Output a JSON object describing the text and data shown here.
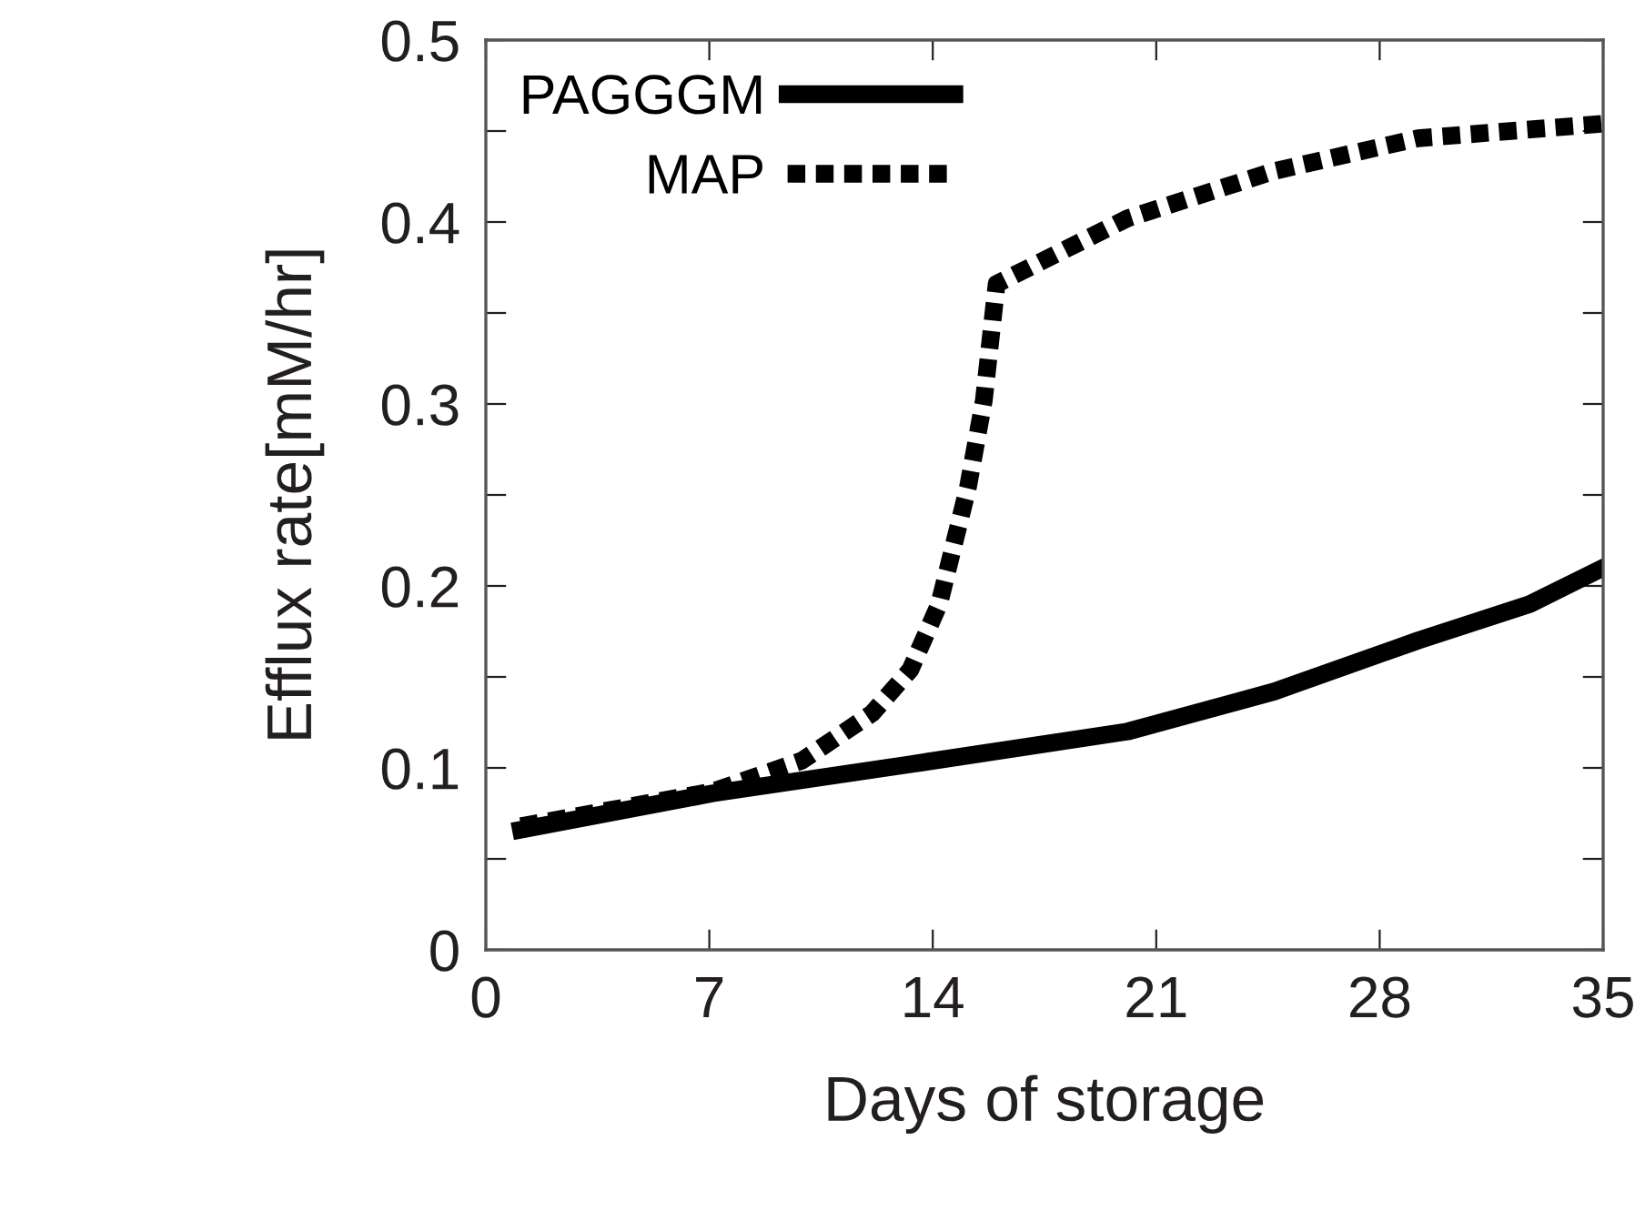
{
  "chart_data": {
    "type": "line",
    "xlabel": "Days of storage",
    "ylabel": "Efflux rate[mM/hr]",
    "xlim": [
      0,
      35
    ],
    "xticks": [
      0,
      7,
      14,
      21,
      28,
      35
    ],
    "ylim": [
      0,
      0.5
    ],
    "yticks": [
      0,
      {
        "value": 0.05,
        "label": null
      },
      0.1,
      {
        "value": 0.15,
        "label": null
      },
      0.2,
      {
        "value": 0.25,
        "label": null
      },
      0.3,
      {
        "value": 0.35,
        "label": null
      },
      0.4,
      {
        "value": 0.45,
        "label": null
      },
      0.5
    ],
    "grid": false,
    "legend": "top left",
    "marker": "none",
    "series": [
      {
        "name": "PAGGGM",
        "color": "#000000",
        "line_style": "solid",
        "x": [
          1.1,
          7.1,
          13.3,
          20.1,
          24.7,
          29.2,
          32.7,
          35
        ],
        "values": [
          0.066,
          0.086,
          0.102,
          0.12,
          0.142,
          0.17,
          0.19,
          0.21
        ]
      },
      {
        "name": "MAP",
        "color": "#000000",
        "line_style": "dotted",
        "x": [
          1.1,
          7.1,
          9.9,
          12.1,
          13.3,
          14.2,
          15.1,
          15.6,
          16.0,
          20.1,
          24.7,
          29.2,
          35
        ],
        "values": [
          0.068,
          0.087,
          0.104,
          0.13,
          0.154,
          0.19,
          0.254,
          0.302,
          0.366,
          0.402,
          0.428,
          0.446,
          0.454
        ]
      }
    ]
  }
}
